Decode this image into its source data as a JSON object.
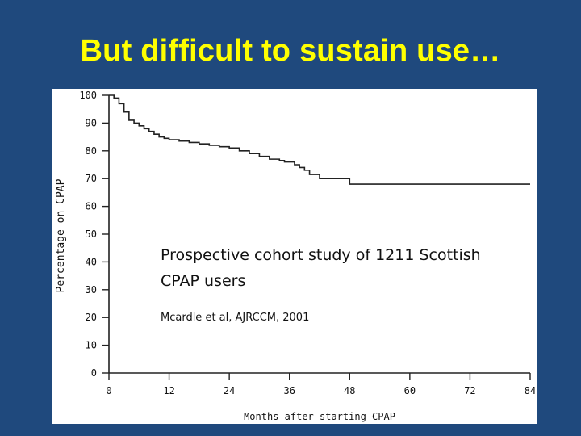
{
  "slide": {
    "title": "But difficult to sustain use…",
    "study_text": "Prospective cohort study of 1211 Scottish CPAP users",
    "citation": "Mcardle et al, AJRCCM, 2001"
  },
  "chart_data": {
    "type": "line",
    "title": "",
    "xlabel": "Months after starting CPAP",
    "ylabel": "Percentage on CPAP",
    "xlim": [
      0,
      84
    ],
    "ylim": [
      0,
      100
    ],
    "x_ticks": [
      0,
      12,
      24,
      36,
      48,
      60,
      72,
      84
    ],
    "y_ticks": [
      0,
      10,
      20,
      30,
      40,
      50,
      60,
      70,
      80,
      90,
      100
    ],
    "grid": false,
    "step": true,
    "series": [
      {
        "x": [
          0,
          1,
          2,
          3,
          4,
          5,
          6,
          7,
          8,
          9,
          10,
          11,
          12,
          14,
          16,
          18,
          20,
          22,
          24,
          26,
          28,
          30,
          32,
          34,
          35,
          37,
          38,
          39,
          40,
          42,
          48,
          84
        ],
        "y": [
          100,
          99,
          97,
          94,
          91,
          90,
          89,
          88,
          87,
          86,
          85,
          84.5,
          84,
          83.5,
          83,
          82.5,
          82,
          81.5,
          81,
          80,
          79,
          78,
          77,
          76.5,
          76,
          75,
          74,
          73,
          71.5,
          70,
          68,
          68
        ]
      }
    ]
  }
}
